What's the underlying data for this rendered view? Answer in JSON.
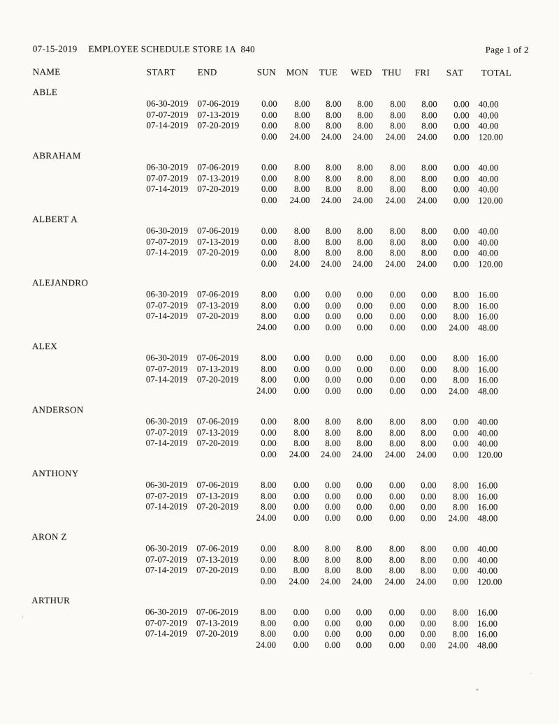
{
  "page": {
    "date": "07-15-2019",
    "title": "EMPLOYEE SCHEDULE STORE 1A  840",
    "page_label": "Page 1 of 2"
  },
  "table": {
    "headers": [
      "NAME",
      "START",
      "END",
      "SUN",
      "MON",
      "TUE",
      "WED",
      "THU",
      "FRI",
      "SAT",
      "TOTAL"
    ],
    "employees": [
      {
        "name": "ABLE",
        "weeks": [
          {
            "start": "06-30-2019",
            "end": "07-06-2019",
            "hours": [
              "0.00",
              "8.00",
              "8.00",
              "8.00",
              "8.00",
              "8.00",
              "0.00",
              "40.00"
            ]
          },
          {
            "start": "07-07-2019",
            "end": "07-13-2019",
            "hours": [
              "0.00",
              "8.00",
              "8.00",
              "8.00",
              "8.00",
              "8.00",
              "0.00",
              "40.00"
            ]
          },
          {
            "start": "07-14-2019",
            "end": "07-20-2019",
            "hours": [
              "0.00",
              "8.00",
              "8.00",
              "8.00",
              "8.00",
              "8.00",
              "0.00",
              "40.00"
            ]
          }
        ],
        "totals": [
          "0.00",
          "24.00",
          "24.00",
          "24.00",
          "24.00",
          "24.00",
          "0.00",
          "120.00"
        ]
      },
      {
        "name": "ABRAHAM",
        "weeks": [
          {
            "start": "06-30-2019",
            "end": "07-06-2019",
            "hours": [
              "0.00",
              "8.00",
              "8.00",
              "8.00",
              "8.00",
              "8.00",
              "0.00",
              "40.00"
            ]
          },
          {
            "start": "07-07-2019",
            "end": "07-13-2019",
            "hours": [
              "0.00",
              "8.00",
              "8.00",
              "8.00",
              "8.00",
              "8.00",
              "0.00",
              "40.00"
            ]
          },
          {
            "start": "07-14-2019",
            "end": "07-20-2019",
            "hours": [
              "0.00",
              "8.00",
              "8.00",
              "8.00",
              "8.00",
              "8.00",
              "0.00",
              "40.00"
            ]
          }
        ],
        "totals": [
          "0.00",
          "24.00",
          "24.00",
          "24.00",
          "24.00",
          "24.00",
          "0.00",
          "120.00"
        ]
      },
      {
        "name": "ALBERT A",
        "weeks": [
          {
            "start": "06-30-2019",
            "end": "07-06-2019",
            "hours": [
              "0.00",
              "8.00",
              "8.00",
              "8.00",
              "8.00",
              "8.00",
              "0.00",
              "40.00"
            ]
          },
          {
            "start": "07-07-2019",
            "end": "07-13-2019",
            "hours": [
              "0.00",
              "8.00",
              "8.00",
              "8.00",
              "8.00",
              "8.00",
              "0.00",
              "40.00"
            ]
          },
          {
            "start": "07-14-2019",
            "end": "07-20-2019",
            "hours": [
              "0.00",
              "8.00",
              "8.00",
              "8.00",
              "8.00",
              "8.00",
              "0.00",
              "40.00"
            ]
          }
        ],
        "totals": [
          "0.00",
          "24.00",
          "24.00",
          "24.00",
          "24.00",
          "24.00",
          "0.00",
          "120.00"
        ]
      },
      {
        "name": "ALEJANDRO",
        "weeks": [
          {
            "start": "06-30-2019",
            "end": "07-06-2019",
            "hours": [
              "8.00",
              "0.00",
              "0.00",
              "0.00",
              "0.00",
              "0.00",
              "8.00",
              "16.00"
            ]
          },
          {
            "start": "07-07-2019",
            "end": "07-13-2019",
            "hours": [
              "8.00",
              "0.00",
              "0.00",
              "0.00",
              "0.00",
              "0.00",
              "8.00",
              "16.00"
            ]
          },
          {
            "start": "07-14-2019",
            "end": "07-20-2019",
            "hours": [
              "8.00",
              "0.00",
              "0.00",
              "0.00",
              "0.00",
              "0.00",
              "8.00",
              "16.00"
            ]
          }
        ],
        "totals": [
          "24.00",
          "0.00",
          "0.00",
          "0.00",
          "0.00",
          "0.00",
          "24.00",
          "48.00"
        ]
      },
      {
        "name": "ALEX",
        "weeks": [
          {
            "start": "06-30-2019",
            "end": "07-06-2019",
            "hours": [
              "8.00",
              "0.00",
              "0.00",
              "0.00",
              "0.00",
              "0.00",
              "8.00",
              "16.00"
            ]
          },
          {
            "start": "07-07-2019",
            "end": "07-13-2019",
            "hours": [
              "8.00",
              "0.00",
              "0.00",
              "0.00",
              "0.00",
              "0.00",
              "8.00",
              "16.00"
            ]
          },
          {
            "start": "07-14-2019",
            "end": "07-20-2019",
            "hours": [
              "8.00",
              "0.00",
              "0.00",
              "0.00",
              "0.00",
              "0.00",
              "8.00",
              "16.00"
            ]
          }
        ],
        "totals": [
          "24.00",
          "0.00",
          "0.00",
          "0.00",
          "0.00",
          "0.00",
          "24.00",
          "48.00"
        ]
      },
      {
        "name": "ANDERSON",
        "weeks": [
          {
            "start": "06-30-2019",
            "end": "07-06-2019",
            "hours": [
              "0.00",
              "8.00",
              "8.00",
              "8.00",
              "8.00",
              "8.00",
              "0.00",
              "40.00"
            ]
          },
          {
            "start": "07-07-2019",
            "end": "07-13-2019",
            "hours": [
              "0.00",
              "8.00",
              "8.00",
              "8.00",
              "8.00",
              "8.00",
              "0.00",
              "40.00"
            ]
          },
          {
            "start": "07-14-2019",
            "end": "07-20-2019",
            "hours": [
              "0.00",
              "8.00",
              "8.00",
              "8.00",
              "8.00",
              "8.00",
              "0.00",
              "40.00"
            ]
          }
        ],
        "totals": [
          "0.00",
          "24.00",
          "24.00",
          "24.00",
          "24.00",
          "24.00",
          "0.00",
          "120.00"
        ]
      },
      {
        "name": "ANTHONY",
        "weeks": [
          {
            "start": "06-30-2019",
            "end": "07-06-2019",
            "hours": [
              "8.00",
              "0.00",
              "0.00",
              "0.00",
              "0.00",
              "0.00",
              "8.00",
              "16.00"
            ]
          },
          {
            "start": "07-07-2019",
            "end": "07-13-2019",
            "hours": [
              "8.00",
              "0.00",
              "0.00",
              "0.00",
              "0.00",
              "0.00",
              "8.00",
              "16.00"
            ]
          },
          {
            "start": "07-14-2019",
            "end": "07-20-2019",
            "hours": [
              "8.00",
              "0.00",
              "0.00",
              "0.00",
              "0.00",
              "0.00",
              "8.00",
              "16.00"
            ]
          }
        ],
        "totals": [
          "24.00",
          "0.00",
          "0.00",
          "0.00",
          "0.00",
          "0.00",
          "24.00",
          "48.00"
        ]
      },
      {
        "name": "ARON Z",
        "weeks": [
          {
            "start": "06-30-2019",
            "end": "07-06-2019",
            "hours": [
              "0.00",
              "8.00",
              "8.00",
              "8.00",
              "8.00",
              "8.00",
              "0.00",
              "40.00"
            ]
          },
          {
            "start": "07-07-2019",
            "end": "07-13-2019",
            "hours": [
              "0.00",
              "8.00",
              "8.00",
              "8.00",
              "8.00",
              "8.00",
              "0.00",
              "40.00"
            ]
          },
          {
            "start": "07-14-2019",
            "end": "07-20-2019",
            "hours": [
              "0.00",
              "8.00",
              "8.00",
              "8.00",
              "8.00",
              "8.00",
              "0.00",
              "40.00"
            ]
          }
        ],
        "totals": [
          "0.00",
          "24.00",
          "24.00",
          "24.00",
          "24.00",
          "24.00",
          "0.00",
          "120.00"
        ]
      },
      {
        "name": "ARTHUR",
        "weeks": [
          {
            "start": "06-30-2019",
            "end": "07-06-2019",
            "hours": [
              "8.00",
              "0.00",
              "0.00",
              "0.00",
              "0.00",
              "0.00",
              "8.00",
              "16.00"
            ]
          },
          {
            "start": "07-07-2019",
            "end": "07-13-2019",
            "hours": [
              "8.00",
              "0.00",
              "0.00",
              "0.00",
              "0.00",
              "0.00",
              "8.00",
              "16.00"
            ]
          },
          {
            "start": "07-14-2019",
            "end": "07-20-2019",
            "hours": [
              "8.00",
              "0.00",
              "0.00",
              "0.00",
              "0.00",
              "0.00",
              "8.00",
              "16.00"
            ]
          }
        ],
        "totals": [
          "24.00",
          "0.00",
          "0.00",
          "0.00",
          "0.00",
          "0.00",
          "24.00",
          "48.00"
        ]
      }
    ]
  }
}
